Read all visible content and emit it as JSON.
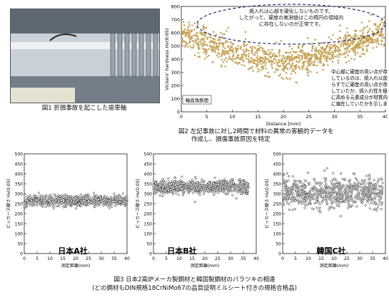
{
  "fig1": {
    "caption": "図1 折損事故を起こした歯車軸"
  },
  "fig2": {
    "caption_line1": "図2 左記事故に対し2時間で材料の異常の客観的データを",
    "caption_line2": "作成し、損傷事故原因を特定",
    "annot_top": [
      "焼入れは心部を硬化しないものです。",
      "したがって、硬度の実測値はこの楕円の領域内",
      "に存在しないのが正常です。"
    ],
    "annot_right": [
      "中心部に硬度の高い点が存在",
      "しているのは、焼入れ以前か",
      "らすでに硬度の高い点が存在",
      "していたか、焼入れ性を極度",
      "に高める元素成分が材質内",
      "に偏在していたかを示します。"
    ],
    "inset_label": "軸直角断面"
  },
  "fig3": {
    "caption_line1": "図3 日本2高炉メーカ製鋼材と韓国製鋼材のバラツキの相違",
    "caption_line2": "(どの鋼材もDIN規格18CrNiMo67の品質証明ミルシート付きの規格合格品)"
  },
  "chart_data": [
    {
      "type": "scatter",
      "title": "",
      "xlabel": "Distance [mm]",
      "ylabel": "Vickers' hardness Hv(0.05)",
      "xlim": [
        0,
        40
      ],
      "ylim": [
        0,
        800
      ],
      "xticks": [
        0,
        5,
        10,
        15,
        20,
        25,
        30,
        35,
        40
      ],
      "yticks": [
        0,
        100,
        200,
        300,
        400,
        500,
        600,
        700,
        800
      ],
      "color": "#c8a55a",
      "grid": false,
      "series": [
        {
          "shape": "u-band",
          "x_range": [
            0,
            40
          ],
          "edge_mean": 610,
          "center_mean": 380,
          "spread": 120,
          "n": 1100
        }
      ]
    },
    {
      "type": "scatter",
      "title": "",
      "label": "日本A社",
      "xlabel": "測定距離(mm)",
      "ylabel": "ビッカース硬さ Hv(0.05)",
      "xlim": [
        0,
        40
      ],
      "ylim": [
        0,
        500
      ],
      "xticks": [
        0,
        5,
        10,
        15,
        20,
        25,
        30,
        35,
        40
      ],
      "yticks": [
        0,
        50,
        100,
        150,
        200,
        250,
        300,
        350,
        400,
        450,
        500
      ],
      "grid": false,
      "series": [
        {
          "x_range": [
            0,
            40
          ],
          "mean": 265,
          "spread": 30,
          "n": 700
        }
      ]
    },
    {
      "type": "scatter",
      "title": "",
      "label": "日本B社",
      "xlabel": "測定距離(mm)",
      "ylabel": "ビッカース硬さ Hv(0.05)",
      "xlim": [
        0,
        40
      ],
      "ylim": [
        0,
        500
      ],
      "xticks": [
        0,
        5,
        10,
        15,
        20,
        25,
        30,
        35,
        40
      ],
      "yticks": [
        0,
        50,
        100,
        150,
        200,
        250,
        300,
        350,
        400,
        450,
        500
      ],
      "grid": false,
      "series": [
        {
          "x_range": [
            0,
            37
          ],
          "mean": 335,
          "spread": 38,
          "n": 700
        }
      ]
    },
    {
      "type": "scatter",
      "title": "",
      "label": "韓国C社",
      "xlabel": "測定距離(mm)",
      "ylabel": "ビッカース硬さ Hv(0.05)",
      "xlim": [
        0,
        40
      ],
      "ylim": [
        0,
        500
      ],
      "xticks": [
        0,
        5,
        10,
        15,
        20,
        25,
        30,
        35,
        40
      ],
      "yticks": [
        0,
        50,
        100,
        150,
        200,
        250,
        300,
        350,
        400,
        450,
        500
      ],
      "grid": false,
      "series": [
        {
          "x_range": [
            0,
            39
          ],
          "mean": 300,
          "spread": 85,
          "n": 700
        }
      ]
    }
  ]
}
